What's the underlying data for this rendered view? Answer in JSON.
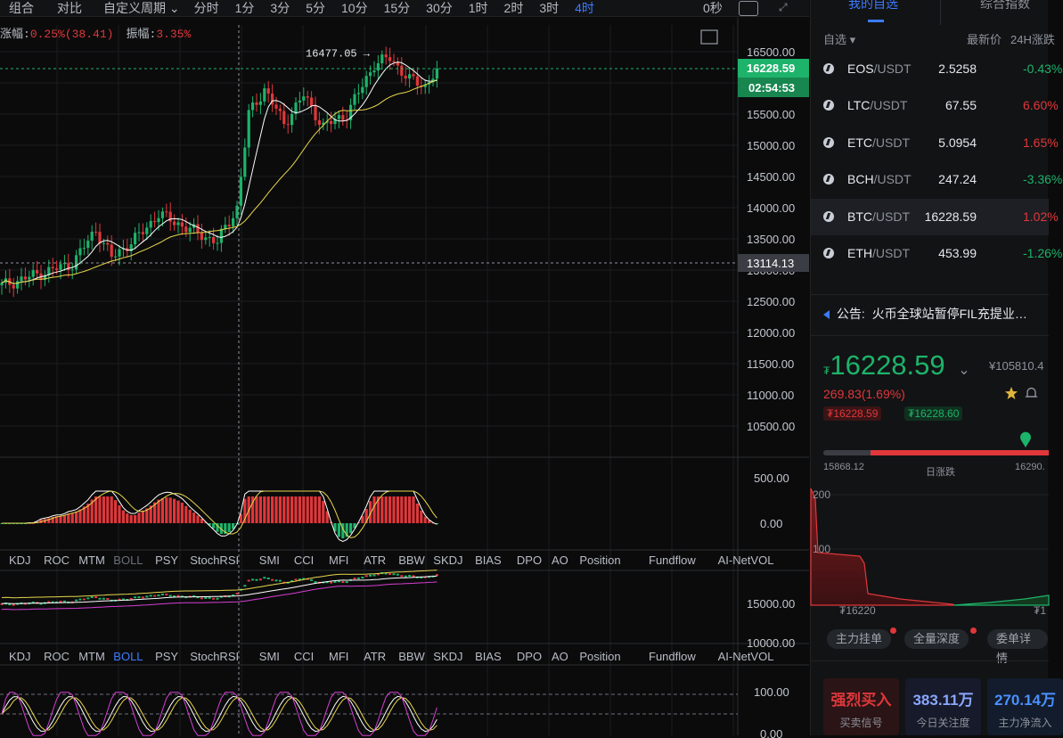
{
  "toolbar": {
    "items": [
      {
        "label": "组合",
        "active": false
      },
      {
        "label": "对比",
        "active": false
      },
      {
        "label": "自定义周期 ⌄",
        "active": false
      },
      {
        "label": "分时",
        "active": false
      },
      {
        "label": "1分",
        "active": false
      },
      {
        "label": "3分",
        "active": false
      },
      {
        "label": "5分",
        "active": false
      },
      {
        "label": "10分",
        "active": false
      },
      {
        "label": "15分",
        "active": false
      },
      {
        "label": "30分",
        "active": false
      },
      {
        "label": "1时",
        "active": false
      },
      {
        "label": "2时",
        "active": false
      },
      {
        "label": "3时",
        "active": false
      },
      {
        "label": "4时",
        "active": true
      }
    ],
    "seconds": "0秒"
  },
  "chart_info": {
    "change_label": "涨幅:",
    "change_value": "0.25%(38.41)",
    "amp_label": "振幅:",
    "amp_value": "3.35%"
  },
  "chart_data": {
    "type": "candlestick",
    "price_axis": {
      "min": 10500,
      "max": 16500,
      "ticks": [
        "16500.00",
        "16000.00",
        "15500.00",
        "15000.00",
        "14500.00",
        "14000.00",
        "13500.00",
        "13000.00",
        "12500.00",
        "12000.00",
        "11500.00",
        "11000.00",
        "10500.00"
      ]
    },
    "current_price_tag": "16228.59",
    "countdown_tag": "02:54:53",
    "crosshair_price_tag": "13114.13",
    "high_marker": "16477.05 →",
    "ma_colors": [
      "#ffffff",
      "#e7d74b"
    ],
    "macd_ticks": [
      "500.00",
      "0.00"
    ],
    "boll_ticks": [
      "15000.00",
      "10000.00"
    ],
    "kdj_ticks": [
      "100.00",
      "0.00"
    ]
  },
  "indicator_tabs": [
    "KDJ",
    "ROC",
    "MTM",
    "BOLL",
    "PSY",
    "StochRSI",
    "SMI",
    "CCI",
    "MFI",
    "ATR",
    "BBW",
    "SKDJ",
    "BIAS",
    "DPO",
    "AO",
    "Position",
    "Fundflow",
    "AI-NetVOL"
  ],
  "indicator_active_row1": "BOLL",
  "indicator_active_row2": "BOLL",
  "panel": {
    "tab_mine": "我的自选",
    "tab_index": "综合指数",
    "head_watch": "自选 ▾",
    "head_price": "最新价",
    "head_chg": "24H涨跌",
    "watchlist": [
      {
        "base": "EOS",
        "quote": "/USDT",
        "price": "2.5258",
        "chg": "-0.43%",
        "dir": "down"
      },
      {
        "base": "LTC",
        "quote": "/USDT",
        "price": "67.55",
        "chg": "6.60%",
        "dir": "up"
      },
      {
        "base": "ETC",
        "quote": "/USDT",
        "price": "5.0954",
        "chg": "1.65%",
        "dir": "up"
      },
      {
        "base": "BCH",
        "quote": "/USDT",
        "price": "247.24",
        "chg": "-3.36%",
        "dir": "down"
      },
      {
        "base": "BTC",
        "quote": "/USDT",
        "price": "16228.59",
        "chg": "1.02%",
        "dir": "up",
        "selected": true
      },
      {
        "base": "ETH",
        "quote": "/USDT",
        "price": "453.99",
        "chg": "-1.26%",
        "dir": "down"
      }
    ],
    "notice_label": "公告:",
    "notice_text": "火币全球站暂停FIL充提业…",
    "big_price_prefix": "₮",
    "big_price": "16228.59",
    "big_price_arrow": "⌄",
    "cny_price": "¥105810.4",
    "change": "269.83(1.69%)",
    "bid_tag": "₮16228.59",
    "ask_tag": "₮16228.60",
    "range_low": "15868.12",
    "range_label": "日涨跌",
    "range_high": "16290.",
    "depth_ticks": [
      "200",
      "100"
    ],
    "depth_price_left": "₮16220",
    "depth_price_right": "₮1",
    "depth_tabs": [
      "主力挂单",
      "全量深度",
      "委单详情"
    ],
    "cards": [
      {
        "value": "强烈买入",
        "label": "买卖信号",
        "color": "#e0373a",
        "bg": "#2a1416"
      },
      {
        "value": "383.11万",
        "label": "今日关注度",
        "color": "#8aa6ff",
        "bg": "#161a2a"
      },
      {
        "value": "270.14万",
        "label": "主力净流入",
        "color": "#4a90ff",
        "bg": "#121c2c"
      }
    ]
  }
}
